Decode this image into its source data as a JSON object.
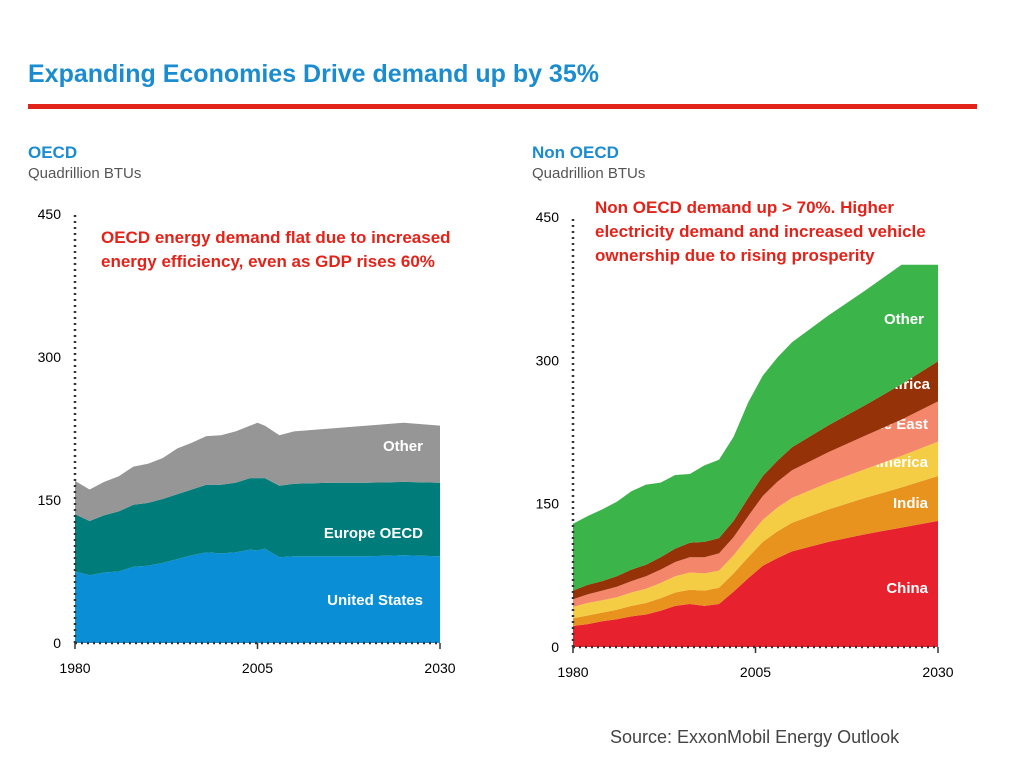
{
  "page": {
    "title": "Expanding Economies Drive demand up by 35%",
    "source": "Source:  ExxonMobil Energy Outlook"
  },
  "colors": {
    "title_blue": "#1a8ccf",
    "accent_red": "#e2231a"
  },
  "panels": [
    {
      "title": "OECD",
      "subtitle": "Quadrillion BTUs",
      "annotation": "OECD energy demand flat due to increased energy efficiency, even as GDP rises 60%"
    },
    {
      "title": "Non OECD",
      "subtitle": "Quadrillion BTUs",
      "annotation": "Non OECD demand up > 70%. Higher electricity demand and increased vehicle ownership  due to rising prosperity"
    }
  ],
  "chart_data": [
    {
      "type": "area",
      "stacked": true,
      "title": "OECD",
      "ylabel": "Quadrillion BTUs",
      "ylim": [
        0,
        450
      ],
      "yticks": [
        0,
        150,
        300,
        450
      ],
      "xlim": [
        1980,
        2030
      ],
      "xticks": [
        1980,
        2005,
        2030
      ],
      "x": [
        1980,
        1982,
        1984,
        1986,
        1988,
        1990,
        1992,
        1994,
        1996,
        1998,
        2000,
        2002,
        2004,
        2005,
        2006,
        2008,
        2010,
        2015,
        2020,
        2025,
        2030
      ],
      "series": [
        {
          "name": "United States",
          "color": "#0a8fd6",
          "values": [
            75,
            71,
            74,
            75,
            80,
            81,
            84,
            88,
            92,
            95,
            94,
            95,
            98,
            97,
            99,
            90,
            91,
            91,
            91,
            92,
            91
          ]
        },
        {
          "name": "Europe OECD",
          "color": "#007d7a",
          "values": [
            60,
            57,
            60,
            63,
            65,
            66,
            67,
            68,
            69,
            71,
            72,
            73,
            75,
            76,
            74,
            75,
            76,
            77,
            77,
            77,
            77
          ]
        },
        {
          "name": "Other",
          "color": "#969696",
          "values": [
            35,
            33,
            35,
            37,
            40,
            41,
            43,
            48,
            49,
            51,
            52,
            54,
            55,
            58,
            55,
            53,
            55,
            57,
            60,
            62,
            60
          ]
        }
      ]
    },
    {
      "type": "area",
      "stacked": true,
      "title": "Non OECD",
      "ylabel": "Quadrillion BTUs",
      "ylim": [
        0,
        450
      ],
      "yticks": [
        0,
        150,
        300,
        450
      ],
      "xlim": [
        1980,
        2030
      ],
      "xticks": [
        1980,
        2005,
        2030
      ],
      "x": [
        1980,
        1982,
        1984,
        1986,
        1988,
        1990,
        1992,
        1994,
        1996,
        1998,
        2000,
        2002,
        2004,
        2006,
        2008,
        2010,
        2015,
        2020,
        2025,
        2030
      ],
      "series": [
        {
          "name": "China",
          "color": "#e8212e",
          "values": [
            22,
            24,
            27,
            29,
            32,
            34,
            38,
            43,
            45,
            43,
            45,
            58,
            72,
            85,
            93,
            100,
            110,
            118,
            125,
            132
          ]
        },
        {
          "name": "India",
          "color": "#e8931e",
          "values": [
            8,
            9,
            9,
            10,
            11,
            12,
            13,
            14,
            15,
            16,
            17,
            19,
            22,
            25,
            28,
            30,
            34,
            38,
            42,
            47
          ]
        },
        {
          "name": "Latin America",
          "color": "#f5cd45",
          "values": [
            12,
            13,
            13,
            13,
            14,
            15,
            16,
            17,
            18,
            18,
            18,
            19,
            21,
            23,
            25,
            26,
            28,
            30,
            33,
            36
          ]
        },
        {
          "name": "Middle East",
          "color": "#f4866b",
          "values": [
            8,
            9,
            10,
            11,
            12,
            13,
            14,
            15,
            16,
            17,
            18,
            19,
            22,
            25,
            27,
            29,
            32,
            35,
            38,
            42
          ]
        },
        {
          "name": "Africa",
          "color": "#963208",
          "values": [
            9,
            10,
            10,
            11,
            12,
            12,
            13,
            14,
            15,
            16,
            16,
            17,
            19,
            21,
            22,
            24,
            28,
            32,
            37,
            42
          ]
        },
        {
          "name": "Other",
          "color": "#3bb44a",
          "values": [
            70,
            72,
            75,
            78,
            82,
            84,
            78,
            77,
            72,
            80,
            82,
            88,
            100,
            105,
            108,
            110,
            115,
            120,
            125,
            101
          ]
        }
      ]
    }
  ]
}
